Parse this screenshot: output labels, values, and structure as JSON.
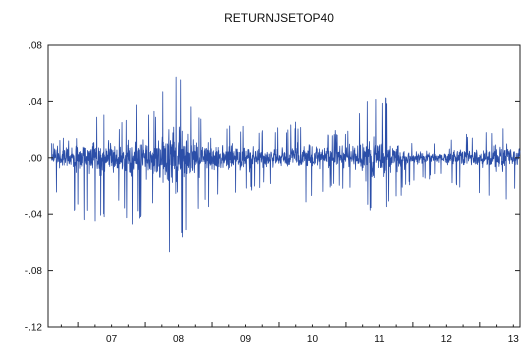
{
  "chart_data": {
    "type": "line",
    "title": "RETURNJSETOP40",
    "xlabel": "",
    "ylabel": "",
    "x_tick_labels": [
      "07",
      "08",
      "09",
      "10",
      "11",
      "12",
      "13"
    ],
    "x_range_years": [
      2006.55,
      2013.6
    ],
    "ylim": [
      -0.12,
      0.08
    ],
    "y_ticks": [
      0.08,
      0.04,
      0.0,
      -0.04,
      -0.08,
      -0.12
    ],
    "y_tick_labels": [
      ".08",
      ".04",
      ".00",
      "-.04",
      "-.08",
      "-.12"
    ],
    "grid": false,
    "legend": "none",
    "series": [
      {
        "color": "#2b4ea8",
        "envelope": {
          "x": [
            2006.6,
            2006.8,
            2007.0,
            2007.2,
            2007.4,
            2007.6,
            2007.8,
            2008.0,
            2008.1,
            2008.2,
            2008.3,
            2008.4,
            2008.5,
            2008.6,
            2008.7,
            2008.8,
            2008.9,
            2009.0,
            2009.2,
            2009.4,
            2009.6,
            2009.8,
            2010.0,
            2010.2,
            2010.4,
            2010.6,
            2010.8,
            2011.0,
            2011.2,
            2011.4,
            2011.6,
            2011.8,
            2012.0,
            2012.2,
            2012.4,
            2012.6,
            2012.8,
            2013.0,
            2013.2,
            2013.4,
            2013.6
          ],
          "upper": [
            0.012,
            0.015,
            0.018,
            0.028,
            0.036,
            0.025,
            0.04,
            0.035,
            0.03,
            0.045,
            0.05,
            0.075,
            0.07,
            0.05,
            0.04,
            0.035,
            0.035,
            0.034,
            0.026,
            0.024,
            0.024,
            0.018,
            0.022,
            0.025,
            0.028,
            0.022,
            0.02,
            0.02,
            0.032,
            0.052,
            0.044,
            0.03,
            0.012,
            0.012,
            0.01,
            0.016,
            0.018,
            0.016,
            0.02,
            0.024,
            0.018
          ],
          "lower": [
            -0.03,
            -0.035,
            -0.04,
            -0.05,
            -0.048,
            -0.03,
            -0.05,
            -0.045,
            -0.04,
            -0.06,
            -0.065,
            -0.08,
            -0.075,
            -0.055,
            -0.045,
            -0.04,
            -0.038,
            -0.035,
            -0.028,
            -0.028,
            -0.026,
            -0.02,
            -0.026,
            -0.028,
            -0.032,
            -0.025,
            -0.022,
            -0.024,
            -0.036,
            -0.046,
            -0.036,
            -0.03,
            -0.016,
            -0.016,
            -0.014,
            -0.02,
            -0.024,
            -0.028,
            -0.034,
            -0.03,
            -0.024
          ]
        }
      }
    ]
  }
}
